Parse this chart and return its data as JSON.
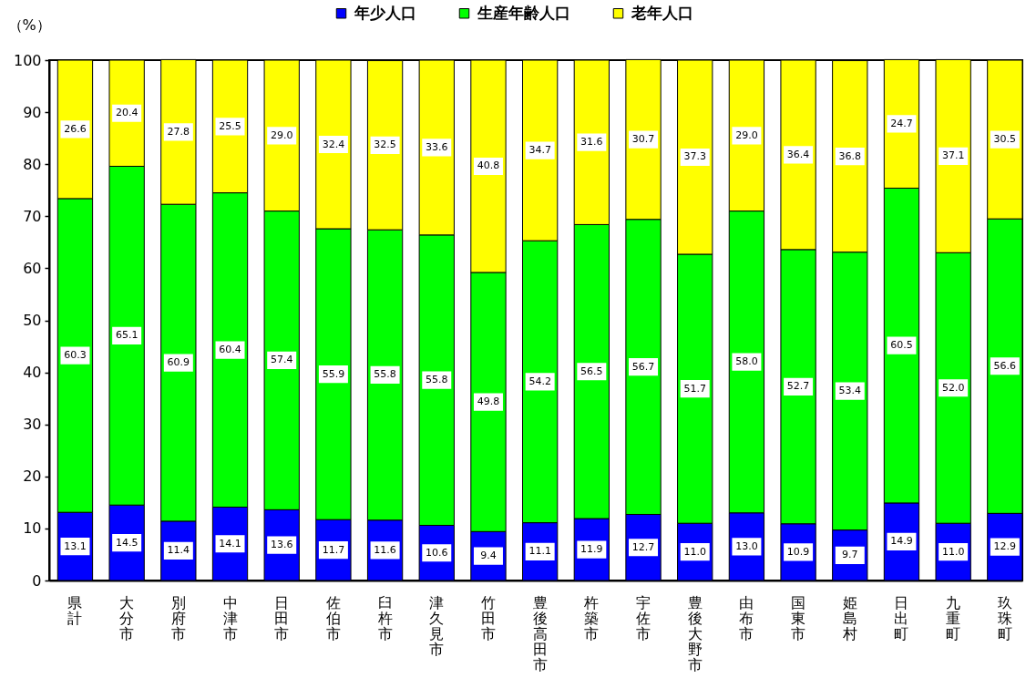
{
  "chart_data": {
    "type": "bar",
    "stacked": true,
    "ylabel": "（%）",
    "categories": [
      "県計",
      "大分市",
      "別府市",
      "中津市",
      "日田市",
      "佐伯市",
      "臼杵市",
      "津久見市",
      "竹田市",
      "豊後高田市",
      "杵築市",
      "宇佐市",
      "豊後大野市",
      "由布市",
      "国東市",
      "姫島村",
      "日出町",
      "九重町",
      "玖珠町"
    ],
    "series": [
      {
        "name": "年少人口",
        "color": "#0000ff",
        "values": [
          13.1,
          14.5,
          11.4,
          14.1,
          13.6,
          11.7,
          11.6,
          10.6,
          9.4,
          11.1,
          11.9,
          12.7,
          11.0,
          13.0,
          10.9,
          9.7,
          14.9,
          11.0,
          12.9
        ],
        "value_labels": [
          "13.1",
          "14.5",
          "11.4",
          "14.1",
          "13.6",
          "11.7",
          "11.6",
          "10.6",
          "9.4",
          "11.1",
          "11.9",
          "12.7",
          "11.0",
          "13.0",
          "10.9",
          "9.7",
          "14.9",
          "11.0",
          "12.9"
        ]
      },
      {
        "name": "生産年齢人口",
        "color": "#00ff00",
        "values": [
          60.3,
          65.1,
          60.9,
          60.4,
          57.4,
          55.9,
          55.8,
          55.8,
          49.8,
          54.2,
          56.5,
          56.7,
          51.7,
          58.0,
          52.7,
          53.4,
          60.5,
          52.0,
          56.6
        ],
        "value_labels": [
          "60.3",
          "65.1",
          "60.9",
          "60.4",
          "57.4",
          "55.9",
          "55.8",
          "55.8",
          "49.8",
          "54.2",
          "56.5",
          "56.7",
          "51.7",
          "58.0",
          "52.7",
          "53.4",
          "60.5",
          "52.0",
          "56.6"
        ]
      },
      {
        "name": "老年人口",
        "color": "#ffff00",
        "values": [
          26.6,
          20.4,
          27.8,
          25.5,
          29.0,
          32.4,
          32.5,
          33.6,
          40.8,
          34.7,
          31.6,
          30.7,
          37.3,
          29.0,
          36.4,
          36.8,
          24.7,
          37.1,
          30.5
        ],
        "value_labels": [
          "26.6",
          "20.4",
          "27.8",
          "25.5",
          "29.0",
          "32.4",
          "32.5",
          "33.6",
          "40.8",
          "34.7",
          "31.6",
          "30.7",
          "37.3",
          "29.0",
          "36.4",
          "36.8",
          "24.7",
          "37.1",
          "30.5"
        ]
      }
    ],
    "ylim": [
      0,
      100
    ],
    "yticks": [
      0,
      10,
      20,
      30,
      40,
      50,
      60,
      70,
      80,
      90,
      100
    ],
    "grid": false,
    "legend": "top"
  }
}
